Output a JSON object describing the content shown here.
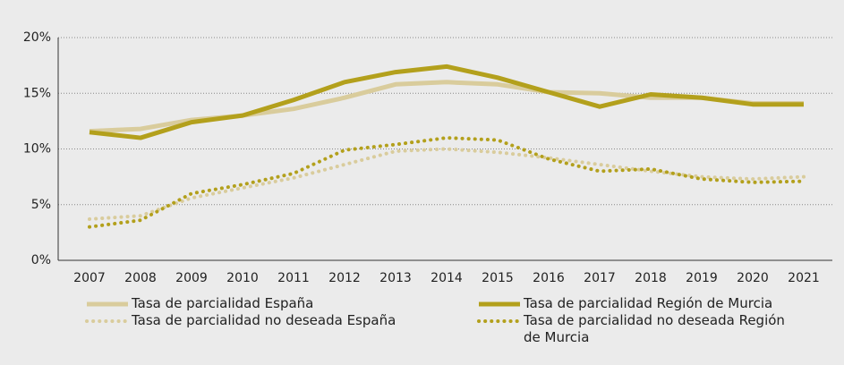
{
  "chart_data": {
    "type": "line",
    "categories": [
      "2007",
      "2008",
      "2009",
      "2010",
      "2011",
      "2012",
      "2013",
      "2014",
      "2015",
      "2016",
      "2017",
      "2018",
      "2019",
      "2020",
      "2021"
    ],
    "series": [
      {
        "name": "Tasa de parcialidad España",
        "color": "#d9cc9c",
        "line_style": "solid",
        "values": [
          11.6,
          11.8,
          12.6,
          13.0,
          13.6,
          14.6,
          15.8,
          16.0,
          15.8,
          15.1,
          15.0,
          14.6,
          14.6,
          14.1,
          14.1
        ]
      },
      {
        "name": "Tasa de parcialidad Región de Murcia",
        "color": "#b3a01c",
        "line_style": "solid",
        "values": [
          11.5,
          11.0,
          12.4,
          13.0,
          14.4,
          16.0,
          16.9,
          17.4,
          16.4,
          15.1,
          13.8,
          14.9,
          14.6,
          14.0,
          14.0
        ]
      },
      {
        "name": "Tasa de parcialidad no deseada España",
        "color": "#d9cc9c",
        "line_style": "dotted",
        "values": [
          3.7,
          4.0,
          5.6,
          6.5,
          7.4,
          8.6,
          9.8,
          10.0,
          9.7,
          9.2,
          8.6,
          8.0,
          7.5,
          7.3,
          7.5
        ]
      },
      {
        "name": "Tasa de parcialidad no deseada Región de Murcia",
        "color": "#b3a01c",
        "line_style": "dotted",
        "values": [
          3.0,
          3.6,
          6.0,
          6.8,
          7.8,
          9.9,
          10.4,
          11.0,
          10.8,
          9.1,
          8.0,
          8.2,
          7.3,
          7.0,
          7.1
        ]
      }
    ],
    "ylim": [
      0,
      20
    ],
    "yticks": [
      {
        "value": 0,
        "label": "0%"
      },
      {
        "value": 5,
        "label": "5%"
      },
      {
        "value": 10,
        "label": "10%"
      },
      {
        "value": 15,
        "label": "15%"
      },
      {
        "value": 20,
        "label": "20%"
      }
    ],
    "grid": true
  }
}
